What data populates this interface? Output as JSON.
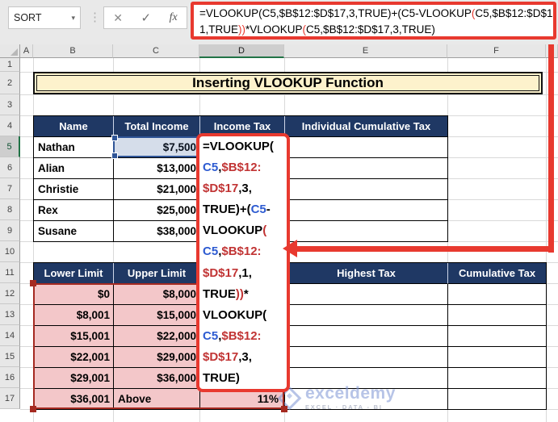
{
  "colors": {
    "accent_red": "#e8392f",
    "navy": "#1f3864",
    "cream": "#fdf2cc",
    "pink": "#f3c7c9",
    "pink_border": "#a52a21",
    "ref_blue": "#2d5bd1",
    "ref_red": "#c13434",
    "selection_blue": "#2f5597",
    "excel_green": "#217346"
  },
  "toolbar": {
    "name_box_value": "SORT",
    "dropdown_icon": "▾",
    "separator_icon": "⋮",
    "cancel_icon": "✕",
    "enter_icon": "✓",
    "fx_icon": "fx"
  },
  "formula_bar": {
    "lines": [
      [
        {
          "t": "=VLOOKUP(C5,$B$12:$D$17,3,TRUE)+(C5-VLOOKUP",
          "c": "k"
        },
        {
          "t": "(",
          "c": "r"
        },
        {
          "t": "C5,$B$12:$D$17,",
          "c": "k"
        }
      ],
      [
        {
          "t": "1,TRUE",
          "c": "k"
        },
        {
          "t": "))",
          "c": "r"
        },
        {
          "t": "*VLOOKUP",
          "c": "k"
        },
        {
          "t": "(",
          "c": "r"
        },
        {
          "t": "C5,$B$12:$D$17,3,TRUE)",
          "c": "k"
        }
      ]
    ]
  },
  "grid": {
    "column_letters": [
      "A",
      "B",
      "C",
      "D",
      "E",
      "F"
    ],
    "row_numbers": [
      "1",
      "2",
      "3",
      "4",
      "5",
      "6",
      "7",
      "8",
      "9",
      "10",
      "11",
      "12",
      "13",
      "14",
      "15",
      "16",
      "17"
    ],
    "selected_column": "D",
    "selected_row": "5"
  },
  "title_banner": "Inserting VLOOKUP Function",
  "income_table": {
    "headers": [
      "Name",
      "Total Income",
      "Income Tax",
      "Individual Cumulative Tax"
    ],
    "rows": [
      {
        "name": "Nathan",
        "income": "$7,500"
      },
      {
        "name": "Alian",
        "income": "$13,000"
      },
      {
        "name": "Christie",
        "income": "$21,000"
      },
      {
        "name": "Rex",
        "income": "$25,000"
      },
      {
        "name": "Susane",
        "income": "$38,000"
      }
    ]
  },
  "tax_table": {
    "headers": [
      "Lower Limit",
      "Upper Limit",
      "Highest Tax",
      "Cumulative Tax"
    ],
    "rows": [
      {
        "lower": "$0",
        "upper": "$8,000"
      },
      {
        "lower": "$8,001",
        "upper": "$15,000"
      },
      {
        "lower": "$15,001",
        "upper": "$22,000"
      },
      {
        "lower": "$22,001",
        "upper": "$29,000"
      },
      {
        "lower": "$29,001",
        "upper": "$36,000"
      },
      {
        "lower": "$36,001",
        "upper": "Above"
      }
    ],
    "d17_value": "11%"
  },
  "in_cell_formula": {
    "lines": [
      [
        {
          "t": "=VLOOKUP(",
          "c": "k"
        }
      ],
      [
        {
          "t": "C5",
          "c": "b"
        },
        {
          "t": ",",
          "c": "k"
        },
        {
          "t": "$B$12:",
          "c": "r"
        }
      ],
      [
        {
          "t": "$D$17",
          "c": "r"
        },
        {
          "t": ",3,",
          "c": "k"
        }
      ],
      [
        {
          "t": "TRUE)+(",
          "c": "k"
        },
        {
          "t": "C5",
          "c": "b"
        },
        {
          "t": "-",
          "c": "k"
        }
      ],
      [
        {
          "t": "VLOOKUP",
          "c": "k"
        },
        {
          "t": "(",
          "c": "r"
        }
      ],
      [
        {
          "t": "C5",
          "c": "b"
        },
        {
          "t": ",",
          "c": "k"
        },
        {
          "t": "$B$12:",
          "c": "r"
        }
      ],
      [
        {
          "t": "$D$17",
          "c": "r"
        },
        {
          "t": ",1,",
          "c": "k"
        }
      ],
      [
        {
          "t": "TRUE",
          "c": "k"
        },
        {
          "t": "))",
          "c": "r"
        },
        {
          "t": "*",
          "c": "k"
        }
      ],
      [
        {
          "t": "VLOOKUP(",
          "c": "k"
        }
      ],
      [
        {
          "t": "C5",
          "c": "b"
        },
        {
          "t": ",",
          "c": "k"
        },
        {
          "t": "$B$12:",
          "c": "r"
        }
      ],
      [
        {
          "t": "$D$17",
          "c": "r"
        },
        {
          "t": ",3,",
          "c": "k"
        }
      ],
      [
        {
          "t": "TRUE)",
          "c": "k"
        }
      ]
    ]
  },
  "watermark": {
    "text": "exceldemy",
    "subtext": "EXCEL · DATA - BI"
  }
}
